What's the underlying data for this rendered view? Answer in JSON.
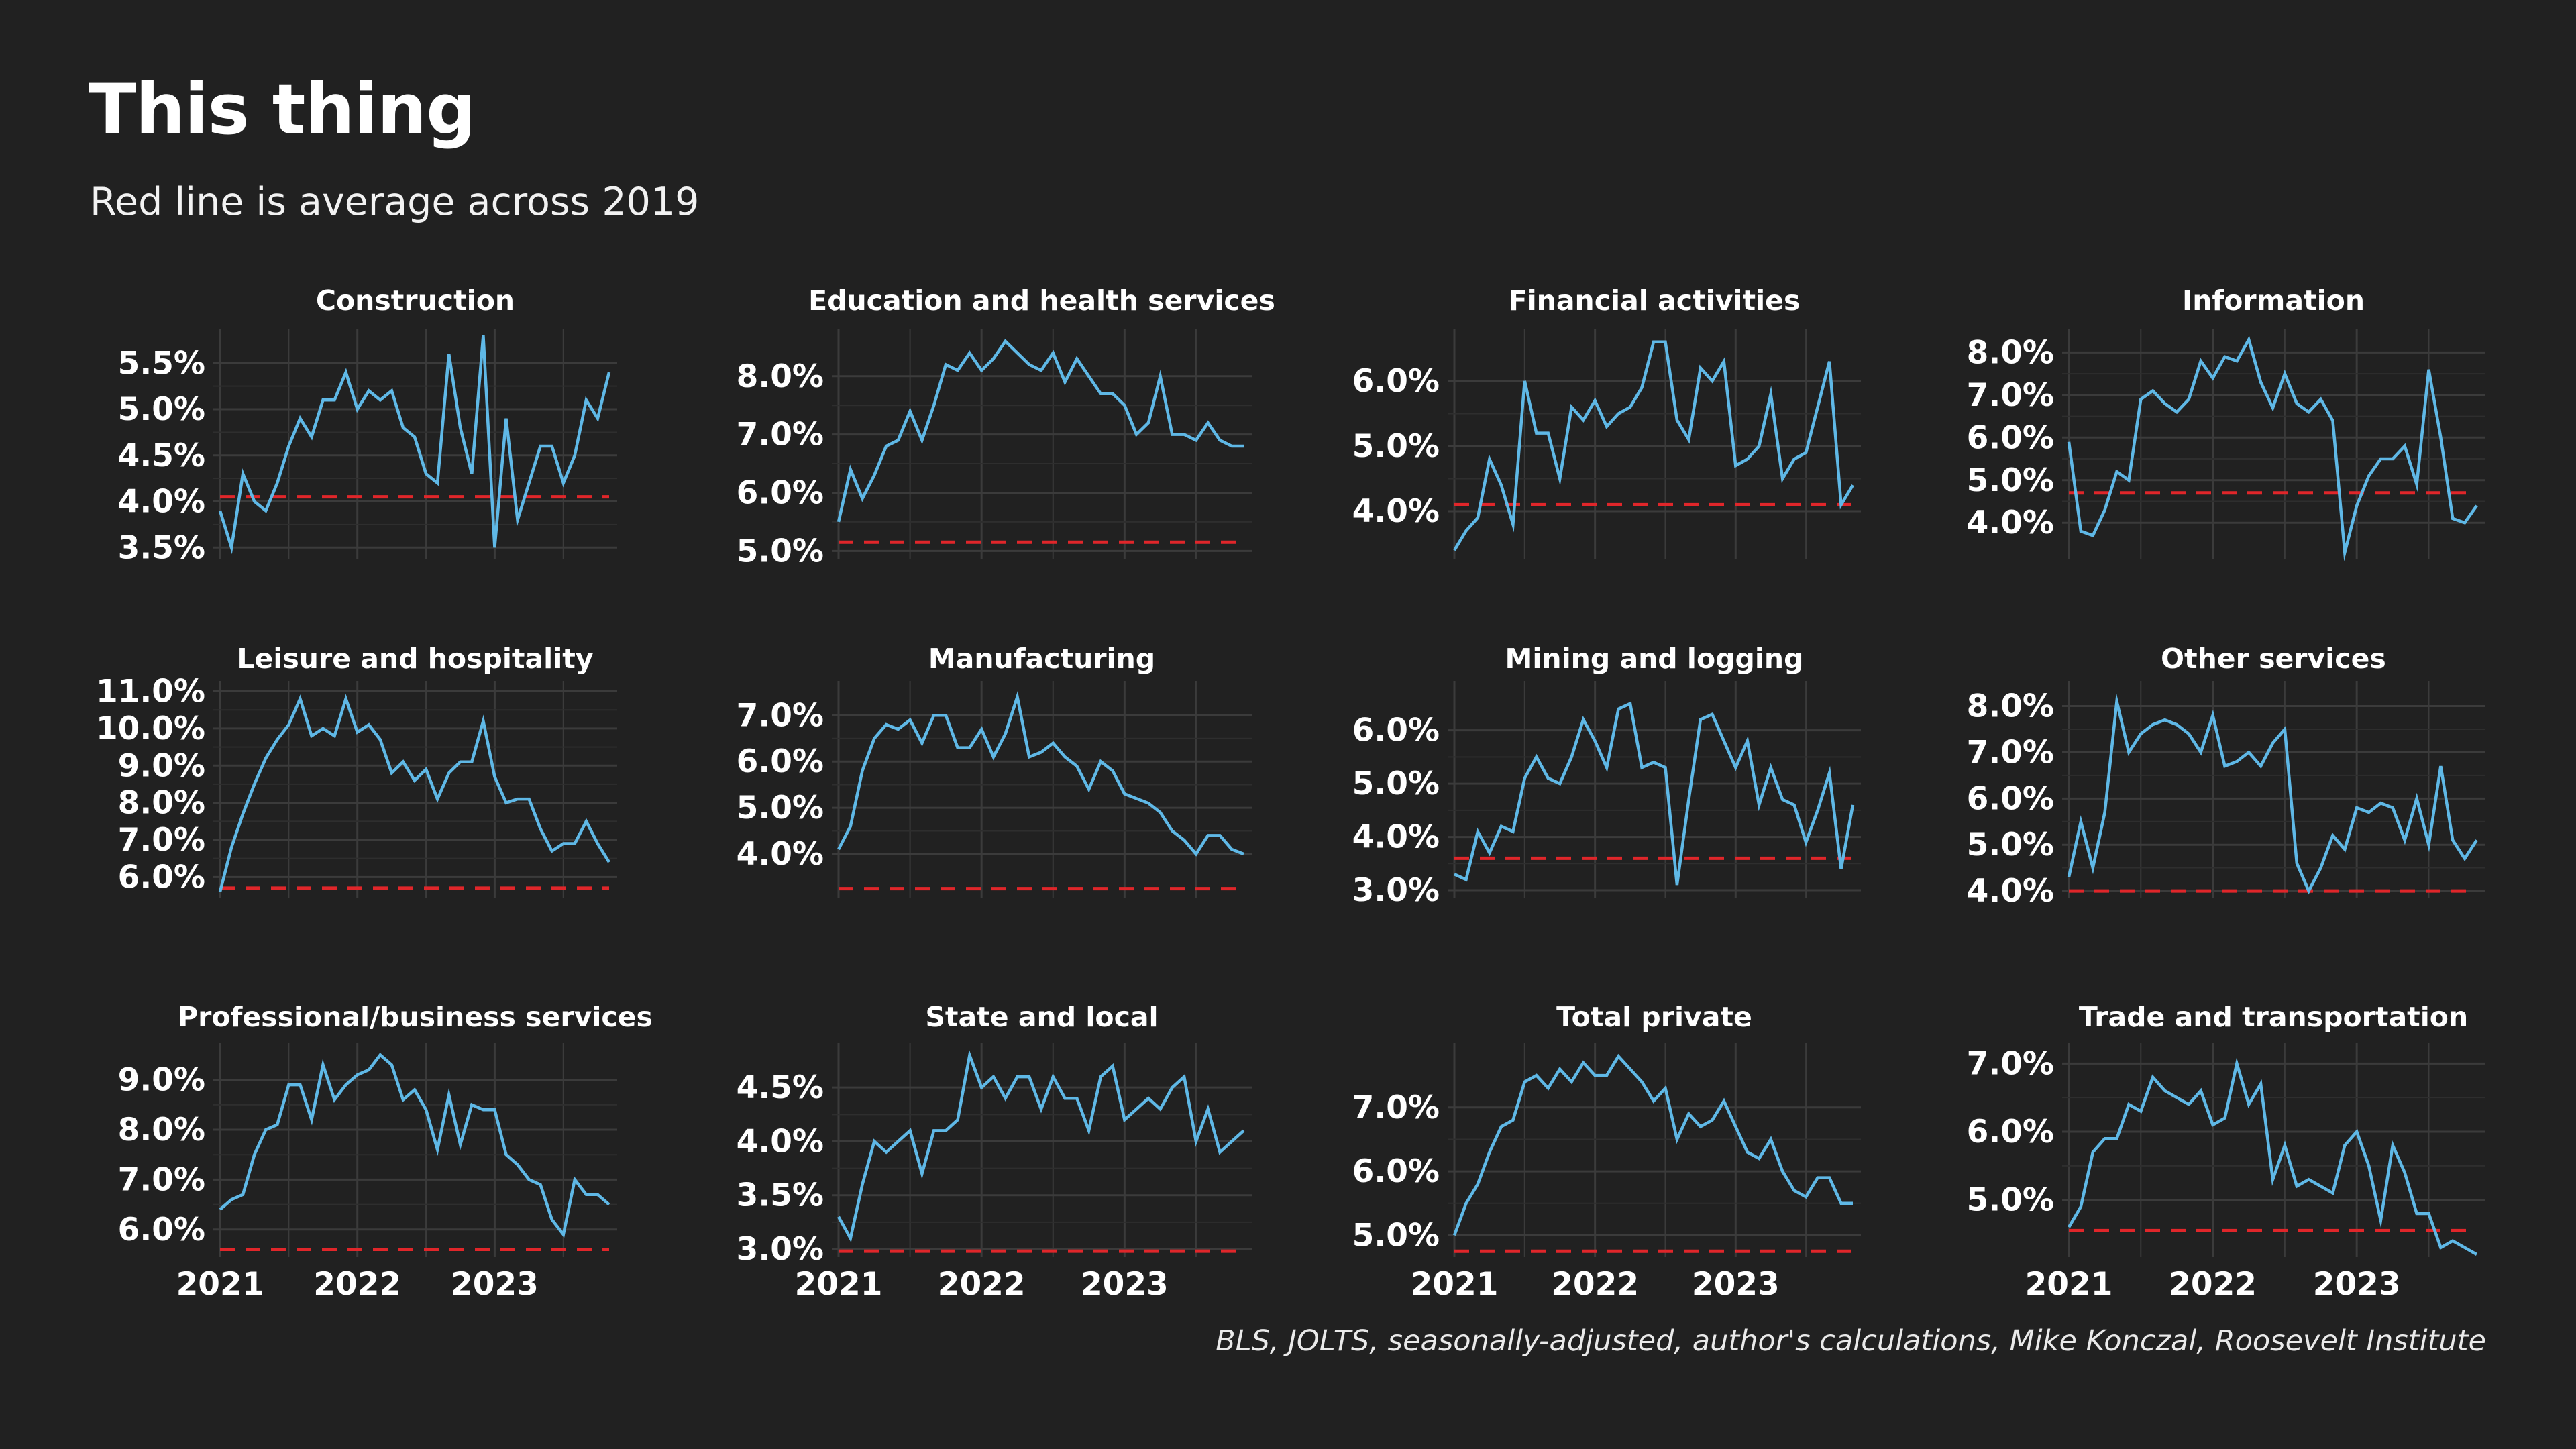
{
  "header": {
    "title": "This thing",
    "subtitle": "Red line is average across 2019"
  },
  "footer": {
    "caption": "BLS, JOLTS, seasonally-adjusted, author's calculations, Mike Konczal, Roosevelt Institute"
  },
  "colors": {
    "background": "#212121",
    "series_line": "#5fb8e6",
    "reference_line": "#e0262a",
    "grid": "#3b3b3b",
    "text": "#ffffff"
  },
  "chart_data": [
    {
      "type": "line",
      "title": "Construction",
      "x_start": "2021-01",
      "x_step": "month",
      "x_ticks": [
        "2021",
        "2022",
        "2023"
      ],
      "y_ticks": [
        "3.5%",
        "4.0%",
        "4.5%",
        "5.0%",
        "5.5%"
      ],
      "y_tick_values": [
        3.5,
        4.0,
        4.5,
        5.0,
        5.5
      ],
      "ylim": [
        3.4,
        5.8
      ],
      "reference_2019_avg": 4.05,
      "series": [
        {
          "values": [
            3.9,
            3.5,
            4.3,
            4.0,
            3.9,
            4.2,
            4.6,
            4.9,
            4.7,
            5.1,
            5.1,
            5.4,
            5.0,
            5.2,
            5.1,
            5.2,
            4.8,
            4.7,
            4.3,
            4.2,
            5.6,
            4.8,
            4.3,
            5.8,
            3.5,
            4.9,
            3.8,
            4.2,
            4.6,
            4.6,
            4.2,
            4.5,
            5.1,
            4.9,
            5.4
          ]
        }
      ]
    },
    {
      "type": "line",
      "title": "Education and health services",
      "x_start": "2021-01",
      "x_step": "month",
      "x_ticks": [
        "2021",
        "2022",
        "2023"
      ],
      "y_ticks": [
        "5.0%",
        "6.0%",
        "7.0%",
        "8.0%"
      ],
      "y_tick_values": [
        5.0,
        6.0,
        7.0,
        8.0
      ],
      "ylim": [
        4.9,
        8.7
      ],
      "reference_2019_avg": 5.15,
      "series": [
        {
          "values": [
            5.5,
            6.4,
            5.9,
            6.3,
            6.8,
            6.9,
            7.4,
            6.9,
            7.5,
            8.2,
            8.1,
            8.4,
            8.1,
            8.3,
            8.6,
            8.4,
            8.2,
            8.1,
            8.4,
            7.9,
            8.3,
            8.0,
            7.7,
            7.7,
            7.5,
            7.0,
            7.2,
            8.0,
            7.0,
            7.0,
            6.9,
            7.2,
            6.9,
            6.8,
            6.8
          ]
        }
      ]
    },
    {
      "type": "line",
      "title": "Financial activities",
      "x_start": "2021-01",
      "x_step": "month",
      "x_ticks": [
        "2021",
        "2022",
        "2023"
      ],
      "y_ticks": [
        "4.0%",
        "5.0%",
        "6.0%"
      ],
      "y_tick_values": [
        4.0,
        5.0,
        6.0
      ],
      "ylim": [
        3.3,
        6.7
      ],
      "reference_2019_avg": 4.1,
      "series": [
        {
          "values": [
            3.4,
            3.7,
            3.9,
            4.8,
            4.4,
            3.8,
            6.0,
            5.2,
            5.2,
            4.5,
            5.6,
            5.4,
            5.7,
            5.3,
            5.5,
            5.6,
            5.9,
            6.6,
            6.6,
            5.4,
            5.1,
            6.2,
            6.0,
            6.3,
            4.7,
            4.8,
            5.0,
            5.8,
            4.5,
            4.8,
            4.9,
            5.6,
            6.3,
            4.1,
            4.4
          ]
        }
      ]
    },
    {
      "type": "line",
      "title": "Information",
      "x_start": "2021-01",
      "x_step": "month",
      "x_ticks": [
        "2021",
        "2022",
        "2023"
      ],
      "y_ticks": [
        "4.0%",
        "5.0%",
        "6.0%",
        "7.0%",
        "8.0%"
      ],
      "y_tick_values": [
        4.0,
        5.0,
        6.0,
        7.0,
        8.0
      ],
      "ylim": [
        3.2,
        8.4
      ],
      "reference_2019_avg": 4.7,
      "series": [
        {
          "values": [
            5.9,
            3.8,
            3.7,
            4.3,
            5.2,
            5.0,
            6.9,
            7.1,
            6.8,
            6.6,
            6.9,
            7.8,
            7.4,
            7.9,
            7.8,
            8.3,
            7.3,
            6.7,
            7.5,
            6.8,
            6.6,
            6.9,
            6.4,
            3.3,
            4.4,
            5.1,
            5.5,
            5.5,
            5.8,
            4.9,
            7.6,
            6.0,
            4.1,
            4.0,
            4.4
          ]
        }
      ]
    },
    {
      "type": "line",
      "title": "Leisure and hospitality",
      "x_start": "2021-01",
      "x_step": "month",
      "x_ticks": [
        "2021",
        "2022",
        "2023"
      ],
      "y_ticks": [
        "6.0%",
        "7.0%",
        "8.0%",
        "9.0%",
        "10.0%",
        "11.0%"
      ],
      "y_tick_values": [
        6.0,
        7.0,
        8.0,
        9.0,
        10.0,
        11.0
      ],
      "ylim": [
        5.5,
        11.1
      ],
      "reference_2019_avg": 5.7,
      "series": [
        {
          "values": [
            5.6,
            6.8,
            7.7,
            8.5,
            9.2,
            9.7,
            10.1,
            10.8,
            9.8,
            10.0,
            9.8,
            10.8,
            9.9,
            10.1,
            9.7,
            8.8,
            9.1,
            8.6,
            8.9,
            8.1,
            8.8,
            9.1,
            9.1,
            10.2,
            8.7,
            8.0,
            8.1,
            8.1,
            7.3,
            6.7,
            6.9,
            6.9,
            7.5,
            6.9,
            6.4
          ]
        }
      ]
    },
    {
      "type": "line",
      "title": "Manufacturing",
      "x_start": "2021-01",
      "x_step": "month",
      "x_ticks": [
        "2021",
        "2022",
        "2023"
      ],
      "y_ticks": [
        "4.0%",
        "5.0%",
        "6.0%",
        "7.0%"
      ],
      "y_tick_values": [
        4.0,
        5.0,
        6.0,
        7.0
      ],
      "ylim": [
        3.1,
        7.6
      ],
      "reference_2019_avg": 3.25,
      "series": [
        {
          "values": [
            4.1,
            4.6,
            5.8,
            6.5,
            6.8,
            6.7,
            6.9,
            6.4,
            7.0,
            7.0,
            6.3,
            6.3,
            6.7,
            6.1,
            6.6,
            7.4,
            6.1,
            6.2,
            6.4,
            6.1,
            5.9,
            5.4,
            6.0,
            5.8,
            5.3,
            5.2,
            5.1,
            4.9,
            4.5,
            4.3,
            4.0,
            4.4,
            4.4,
            4.1,
            4.0
          ]
        }
      ]
    },
    {
      "type": "line",
      "title": "Mining and logging",
      "x_start": "2021-01",
      "x_step": "month",
      "x_ticks": [
        "2021",
        "2022",
        "2023"
      ],
      "y_ticks": [
        "3.0%",
        "4.0%",
        "5.0%",
        "6.0%"
      ],
      "y_tick_values": [
        3.0,
        4.0,
        5.0,
        6.0
      ],
      "ylim": [
        2.9,
        6.8
      ],
      "reference_2019_avg": 3.6,
      "series": [
        {
          "values": [
            3.3,
            3.2,
            4.1,
            3.7,
            4.2,
            4.1,
            5.1,
            5.5,
            5.1,
            5.0,
            5.5,
            6.2,
            5.8,
            5.3,
            6.4,
            6.5,
            5.3,
            5.4,
            5.3,
            3.1,
            4.7,
            6.2,
            6.3,
            5.8,
            5.3,
            5.8,
            4.6,
            5.3,
            4.7,
            4.6,
            3.9,
            4.5,
            5.2,
            3.4,
            4.6
          ]
        }
      ]
    },
    {
      "type": "line",
      "title": "Other services",
      "x_start": "2021-01",
      "x_step": "month",
      "x_ticks": [
        "2021",
        "2022",
        "2023"
      ],
      "y_ticks": [
        "4.0%",
        "5.0%",
        "6.0%",
        "7.0%",
        "8.0%"
      ],
      "y_tick_values": [
        4.0,
        5.0,
        6.0,
        7.0,
        8.0
      ],
      "ylim": [
        3.9,
        8.4
      ],
      "reference_2019_avg": 4.0,
      "series": [
        {
          "values": [
            4.3,
            5.5,
            4.5,
            5.7,
            8.1,
            7.0,
            7.4,
            7.6,
            7.7,
            7.6,
            7.4,
            7.0,
            7.8,
            6.7,
            6.8,
            7.0,
            6.7,
            7.2,
            7.5,
            4.6,
            4.0,
            4.5,
            5.2,
            4.9,
            5.8,
            5.7,
            5.9,
            5.8,
            5.1,
            6.0,
            5.0,
            6.7,
            5.1,
            4.7,
            5.1
          ]
        }
      ]
    },
    {
      "type": "line",
      "title": "Professional/business services",
      "x_start": "2021-01",
      "x_step": "month",
      "x_ticks": [
        "2021",
        "2022",
        "2023"
      ],
      "y_ticks": [
        "6.0%",
        "7.0%",
        "8.0%",
        "9.0%"
      ],
      "y_tick_values": [
        6.0,
        7.0,
        8.0,
        9.0
      ],
      "ylim": [
        5.5,
        9.6
      ],
      "reference_2019_avg": 5.6,
      "series": [
        {
          "values": [
            6.4,
            6.6,
            6.7,
            7.5,
            8.0,
            8.1,
            8.9,
            8.9,
            8.2,
            9.3,
            8.6,
            8.9,
            9.1,
            9.2,
            9.5,
            9.3,
            8.6,
            8.8,
            8.4,
            7.6,
            8.7,
            7.7,
            8.5,
            8.4,
            8.4,
            7.5,
            7.3,
            7.0,
            6.9,
            6.2,
            5.9,
            7.0,
            6.7,
            6.7,
            6.5
          ]
        }
      ]
    },
    {
      "type": "line",
      "title": "State and local",
      "x_start": "2021-01",
      "x_step": "month",
      "x_ticks": [
        "2021",
        "2022",
        "2023"
      ],
      "y_ticks": [
        "3.0%",
        "3.5%",
        "4.0%",
        "4.5%"
      ],
      "y_tick_values": [
        3.0,
        3.5,
        4.0,
        4.5
      ],
      "ylim": [
        2.95,
        4.85
      ],
      "reference_2019_avg": 2.98,
      "series": [
        {
          "values": [
            3.3,
            3.1,
            3.6,
            4.0,
            3.9,
            4.0,
            4.1,
            3.7,
            4.1,
            4.1,
            4.2,
            4.8,
            4.5,
            4.6,
            4.4,
            4.6,
            4.6,
            4.3,
            4.6,
            4.4,
            4.4,
            4.1,
            4.6,
            4.7,
            4.2,
            4.3,
            4.4,
            4.3,
            4.5,
            4.6,
            4.0,
            4.3,
            3.9,
            4.0,
            4.1
          ]
        }
      ]
    },
    {
      "type": "line",
      "title": "Total private",
      "x_start": "2021-01",
      "x_step": "month",
      "x_ticks": [
        "2021",
        "2022",
        "2023"
      ],
      "y_ticks": [
        "5.0%",
        "6.0%",
        "7.0%"
      ],
      "y_tick_values": [
        5.0,
        6.0,
        7.0
      ],
      "ylim": [
        4.7,
        7.9
      ],
      "reference_2019_avg": 4.75,
      "series": [
        {
          "values": [
            5.0,
            5.5,
            5.8,
            6.3,
            6.7,
            6.8,
            7.4,
            7.5,
            7.3,
            7.6,
            7.4,
            7.7,
            7.5,
            7.5,
            7.8,
            7.6,
            7.4,
            7.1,
            7.3,
            6.5,
            6.9,
            6.7,
            6.8,
            7.1,
            6.7,
            6.3,
            6.2,
            6.5,
            6.0,
            5.7,
            5.6,
            5.9,
            5.9,
            5.5,
            5.5
          ]
        }
      ]
    },
    {
      "type": "line",
      "title": "Trade and transportation",
      "x_start": "2021-01",
      "x_step": "month",
      "x_ticks": [
        "2021",
        "2022",
        "2023"
      ],
      "y_ticks": [
        "5.0%",
        "6.0%",
        "7.0%"
      ],
      "y_tick_values": [
        5.0,
        6.0,
        7.0
      ],
      "ylim": [
        4.2,
        7.2
      ],
      "reference_2019_avg": 4.55,
      "series": [
        {
          "values": [
            4.6,
            4.9,
            5.7,
            5.9,
            5.9,
            6.4,
            6.3,
            6.8,
            6.6,
            6.5,
            6.4,
            6.6,
            6.1,
            6.2,
            7.0,
            6.4,
            6.7,
            5.3,
            5.8,
            5.2,
            5.3,
            5.2,
            5.1,
            5.8,
            6.0,
            5.5,
            4.7,
            5.8,
            5.4,
            4.8,
            4.8,
            4.3,
            4.4,
            4.3,
            4.2
          ]
        }
      ]
    }
  ]
}
